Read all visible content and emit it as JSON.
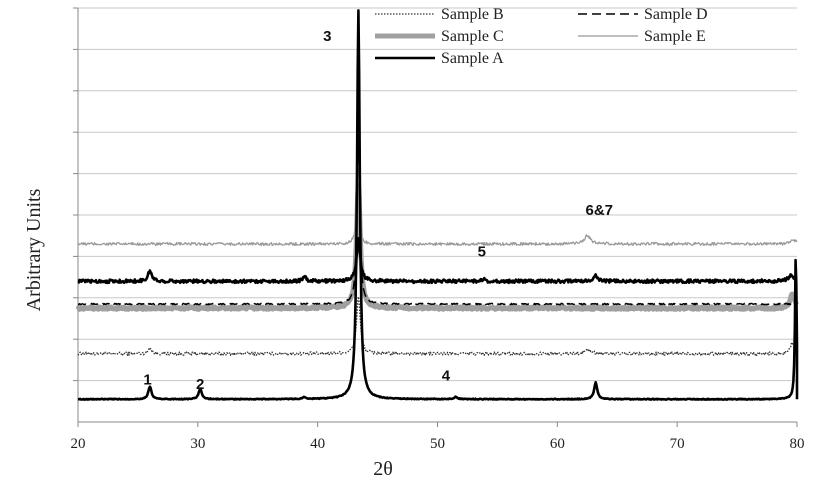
{
  "chart_data": {
    "type": "line",
    "title": "",
    "xlabel": "2θ",
    "ylabel": "Arbitrary Units",
    "xlim": [
      20,
      80
    ],
    "ylim": [
      0,
      10
    ],
    "x_ticks": [
      "20",
      "30",
      "40",
      "50",
      "60",
      "70",
      "80"
    ],
    "y_ticks_count": 10,
    "y_tick_labels_shown": false,
    "grid": "horizontal",
    "legend_position": "top-right",
    "series": [
      {
        "name": "Sample B",
        "style": "dotted",
        "color": "#333333",
        "baseline": 1.65,
        "noise": 0.04,
        "peaks": [
          {
            "x": 26.0,
            "height": 0.15,
            "width": 0.25
          },
          {
            "x": 43.4,
            "height": 1.4,
            "width": 0.28
          },
          {
            "x": 62.6,
            "height": 0.1,
            "width": 0.5
          },
          {
            "x": 79.6,
            "height": 0.25,
            "width": 0.35
          }
        ]
      },
      {
        "name": "Sample D",
        "style": "dashed",
        "color": "#000000",
        "baseline": 2.85,
        "noise": 0.015,
        "peaks": [
          {
            "x": 43.4,
            "height": 4.6,
            "width": 0.2
          }
        ]
      },
      {
        "name": "Sample C",
        "style": "thick",
        "color": "#a0a0a0",
        "baseline": 2.75,
        "noise": 0.03,
        "peaks": [
          {
            "x": 43.4,
            "height": 3.0,
            "width": 0.3
          },
          {
            "x": 79.6,
            "height": 0.35,
            "width": 0.35
          }
        ]
      },
      {
        "name": "Sample E",
        "style": "thin",
        "color": "#9a9a9a",
        "baseline": 4.3,
        "noise": 0.035,
        "peaks": [
          {
            "x": 43.3,
            "height": 0.7,
            "width": 0.3
          },
          {
            "x": 62.5,
            "height": 0.2,
            "width": 0.5
          },
          {
            "x": 79.7,
            "height": 0.1,
            "width": 0.4
          }
        ]
      },
      {
        "name": "Sample A",
        "style": "bold",
        "color": "#000000",
        "baseline": 0.55,
        "noise": 0.01,
        "peaks": [
          {
            "x": 26.0,
            "height": 0.3,
            "width": 0.25
          },
          {
            "x": 30.2,
            "height": 0.25,
            "width": 0.25
          },
          {
            "x": 38.9,
            "height": 0.05,
            "width": 0.25
          },
          {
            "x": 43.4,
            "height": 9.4,
            "width": 0.22
          },
          {
            "x": 51.5,
            "height": 0.05,
            "width": 0.3
          },
          {
            "x": 63.2,
            "height": 0.4,
            "width": 0.25
          },
          {
            "x": 79.9,
            "height": 3.6,
            "width": 0.12
          }
        ]
      },
      {
        "name": "",
        "style": "bold",
        "color": "#000000",
        "baseline": 3.4,
        "noise": 0.04,
        "peaks": [
          {
            "x": 26.0,
            "height": 0.25,
            "width": 0.3
          },
          {
            "x": 38.9,
            "height": 0.1,
            "width": 0.3
          },
          {
            "x": 43.4,
            "height": 1.0,
            "width": 0.3
          },
          {
            "x": 53.8,
            "height": 0.05,
            "width": 0.3
          },
          {
            "x": 63.2,
            "height": 0.15,
            "width": 0.3
          },
          {
            "x": 79.5,
            "height": 0.15,
            "width": 0.4
          }
        ]
      }
    ],
    "annotations": [
      {
        "text": "1",
        "x": 25.8,
        "y": 0.9
      },
      {
        "text": "2",
        "x": 30.2,
        "y": 0.8
      },
      {
        "text": "3",
        "x": 40.8,
        "y": 9.2
      },
      {
        "text": "4",
        "x": 50.7,
        "y": 1.0
      },
      {
        "text": "5",
        "x": 53.7,
        "y": 4.0
      },
      {
        "text": "6&7",
        "x": 63.5,
        "y": 5.0
      }
    ]
  }
}
